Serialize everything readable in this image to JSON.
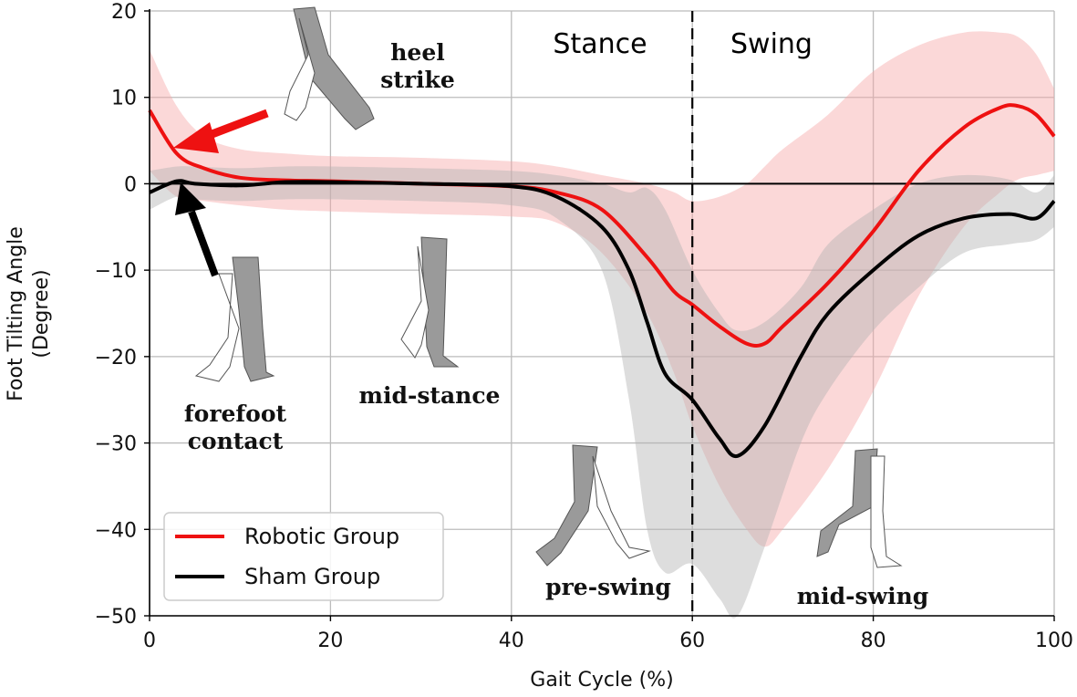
{
  "chart_data": {
    "type": "line",
    "title": "",
    "xlabel": "Gait Cycle (%)",
    "ylabel_line1": "Foot Tilting Angle",
    "ylabel_line2": "(Degree)",
    "xlim": [
      0,
      100
    ],
    "ylim": [
      -50,
      20
    ],
    "xticks": [
      0,
      20,
      40,
      60,
      80,
      100
    ],
    "yticks": [
      20,
      10,
      0,
      -10,
      -20,
      -30,
      -40,
      -50
    ],
    "xtick_labels": [
      "0",
      "20",
      "40",
      "60",
      "80",
      "100"
    ],
    "ytick_labels": [
      "20",
      "10",
      "0",
      "−10",
      "−20",
      "−30",
      "−40",
      "−50"
    ],
    "grid": true,
    "legend_position": "bottom-left",
    "phase_divider_x": 60,
    "phase_labels": {
      "stance": "Stance",
      "swing": "Swing"
    },
    "annotations": {
      "heel_strike_1": "heel",
      "heel_strike_2": "strike",
      "forefoot_1": "forefoot",
      "forefoot_2": "contact",
      "mid_stance": "mid-stance",
      "pre_swing": "pre-swing",
      "mid_swing": "mid-swing"
    },
    "colors": {
      "robotic": "#ee1111",
      "robotic_band": "#f7a8a8",
      "sham": "#000000",
      "sham_band": "#b4b4b4",
      "leg_fill": "#9a9a9a",
      "leg_outline": "#555555",
      "grid": "#bbbbbb"
    },
    "series": [
      {
        "name": "Robotic Group",
        "x": [
          0,
          3,
          6,
          10,
          15,
          20,
          30,
          40,
          45,
          50,
          55,
          58,
          60,
          63,
          66,
          68,
          70,
          75,
          80,
          85,
          90,
          94,
          96,
          98,
          100
        ],
        "values": [
          8.5,
          3.5,
          1.8,
          0.7,
          0.4,
          0.3,
          0.0,
          -0.3,
          -1.0,
          -3.0,
          -8.5,
          -12.5,
          -14.0,
          -16.5,
          -18.5,
          -18.5,
          -16.5,
          -11.5,
          -5.5,
          1.5,
          6.5,
          8.8,
          9.0,
          8.0,
          5.5
        ],
        "upper": [
          15.5,
          9.0,
          5.5,
          4.0,
          3.5,
          3.2,
          3.0,
          2.6,
          2.0,
          1.0,
          0.0,
          -1.0,
          -2.0,
          -1.5,
          0.0,
          2.0,
          4.0,
          8.0,
          13.0,
          16.0,
          17.5,
          17.5,
          17.0,
          15.0,
          11.0
        ],
        "lower": [
          1.5,
          -1.5,
          -2.0,
          -2.5,
          -3.0,
          -3.2,
          -3.5,
          -3.8,
          -4.5,
          -8.0,
          -15.0,
          -22.0,
          -28.0,
          -35.0,
          -40.0,
          -42.0,
          -40.0,
          -33.0,
          -24.0,
          -13.0,
          -5.0,
          -1.0,
          0.5,
          1.0,
          1.5
        ]
      },
      {
        "name": "Sham Group",
        "x": [
          0,
          3,
          5,
          10,
          15,
          20,
          30,
          40,
          45,
          50,
          53,
          55,
          57,
          60,
          63,
          65,
          68,
          72,
          75,
          80,
          85,
          90,
          95,
          98,
          100
        ],
        "values": [
          -1.0,
          0.3,
          0.0,
          -0.2,
          0.2,
          0.2,
          0.0,
          -0.3,
          -1.5,
          -5.0,
          -10.0,
          -16.0,
          -22.0,
          -25.0,
          -29.5,
          -31.5,
          -28.0,
          -20.0,
          -15.0,
          -10.0,
          -6.0,
          -4.0,
          -3.5,
          -4.0,
          -2.0
        ],
        "upper": [
          1.5,
          2.0,
          2.0,
          1.8,
          2.0,
          2.0,
          1.8,
          1.5,
          1.0,
          0.0,
          -1.0,
          -0.5,
          -3.0,
          -10.0,
          -15.0,
          -17.0,
          -16.0,
          -12.0,
          -7.0,
          -3.0,
          0.0,
          1.0,
          0.5,
          -1.0,
          1.0
        ],
        "lower": [
          -3.0,
          -1.5,
          -1.8,
          -2.0,
          -1.8,
          -1.8,
          -2.0,
          -2.5,
          -4.0,
          -10.0,
          -25.0,
          -40.0,
          -45.0,
          -44.0,
          -48.0,
          -50.0,
          -42.0,
          -30.0,
          -24.0,
          -17.0,
          -12.0,
          -8.0,
          -7.0,
          -6.5,
          -5.0
        ]
      }
    ]
  }
}
